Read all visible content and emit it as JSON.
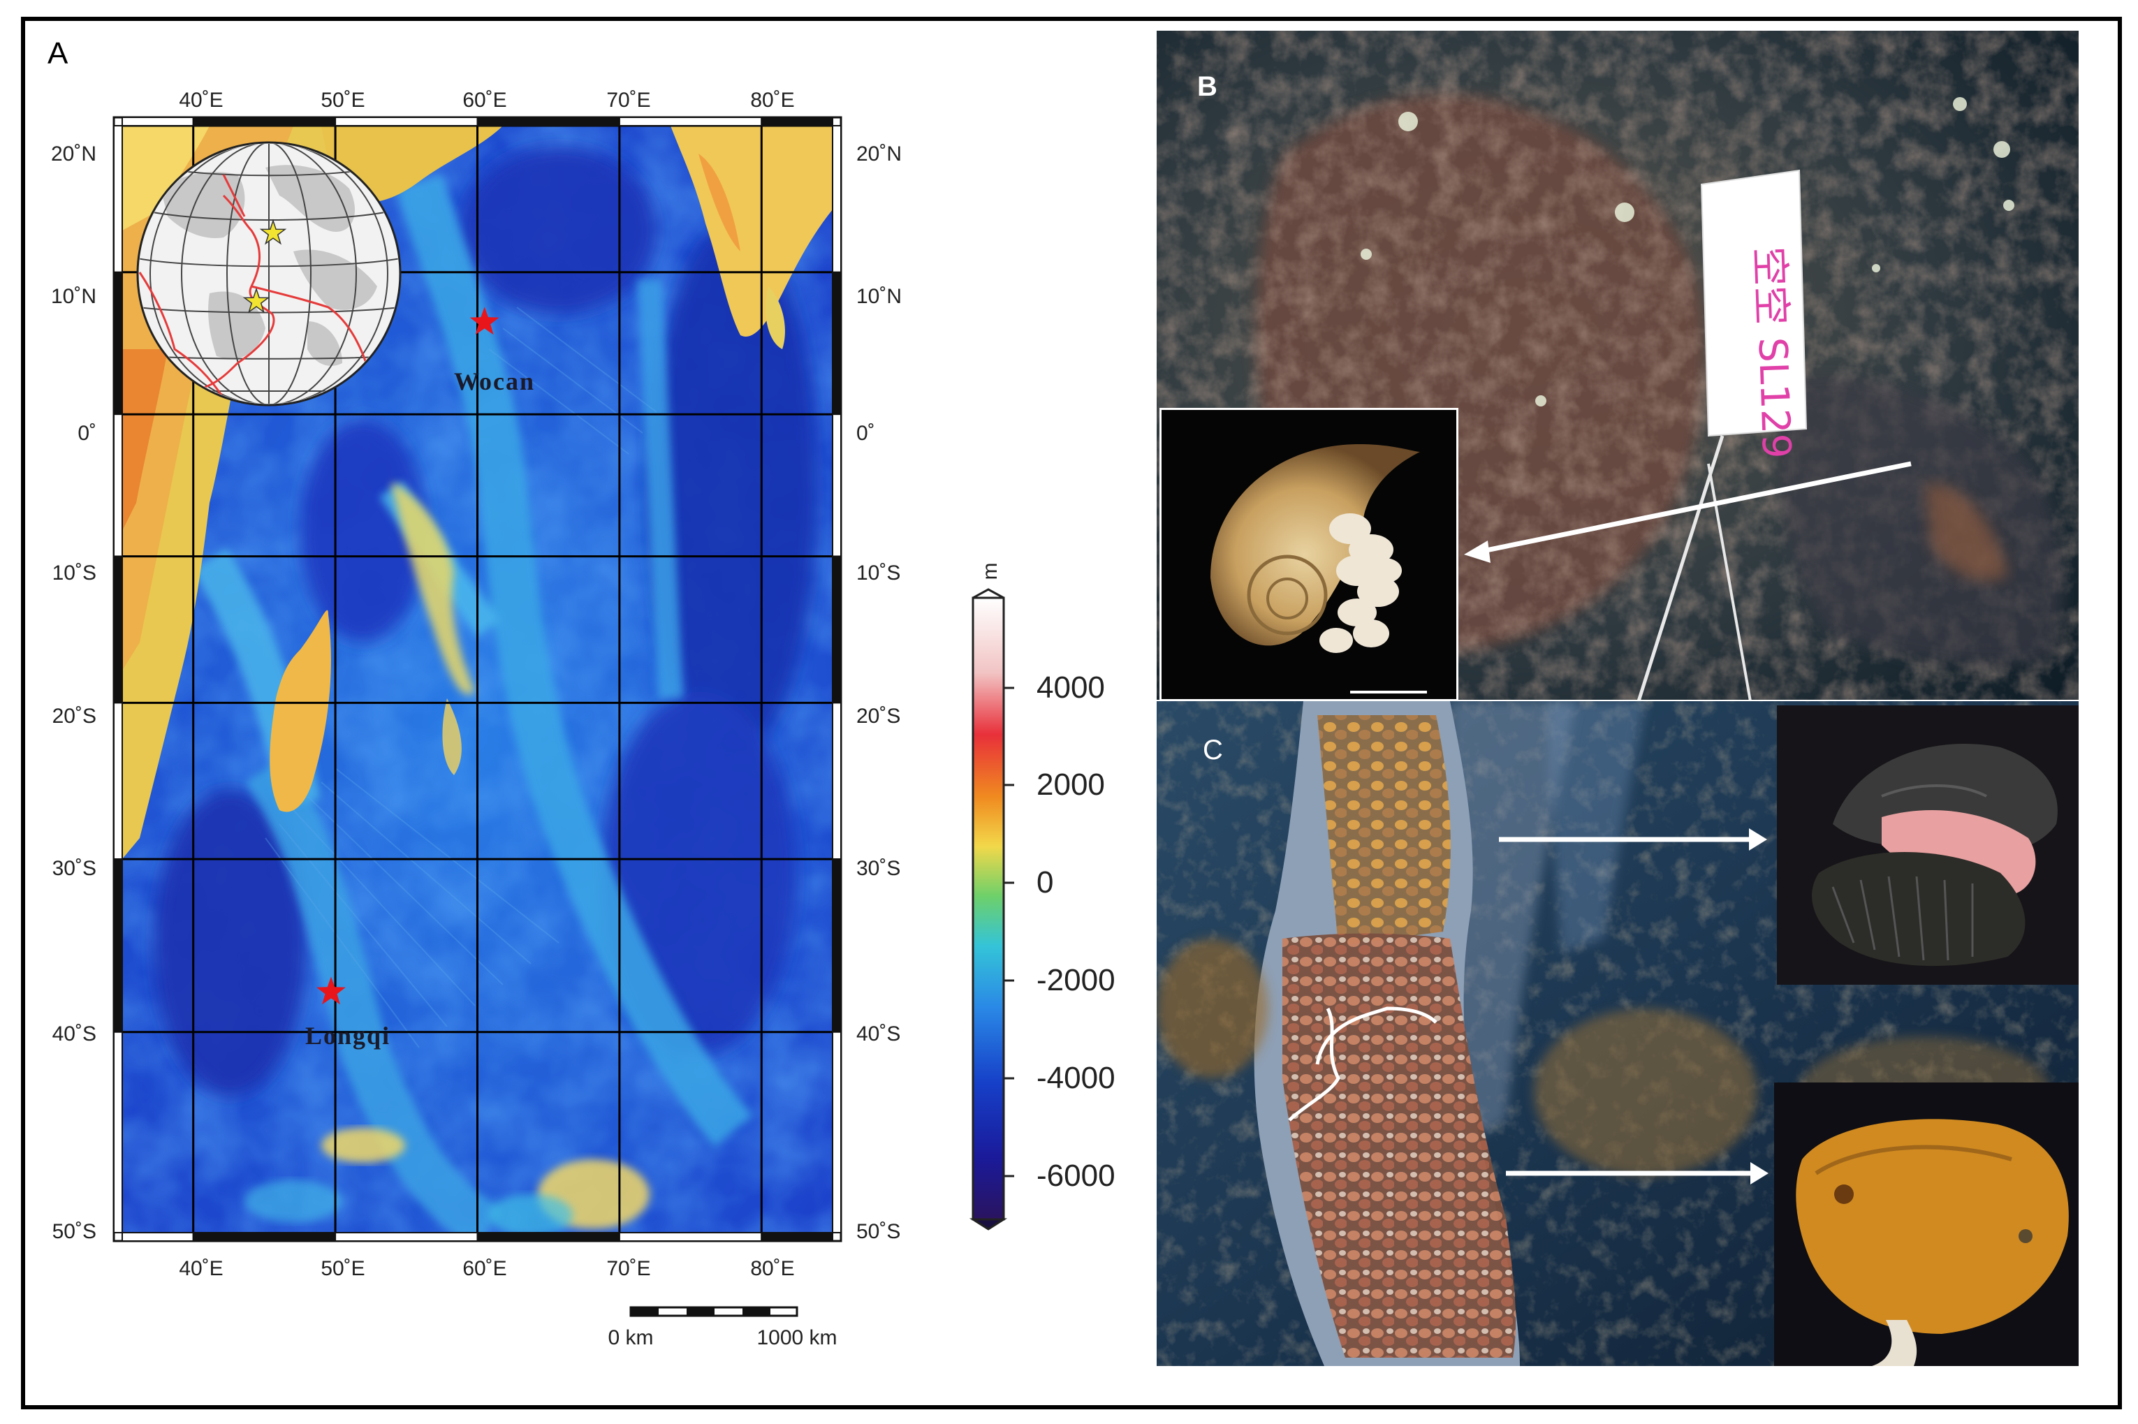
{
  "panels": {
    "a": "A",
    "b": "B",
    "c": "C"
  },
  "map": {
    "lon_labels": [
      "40˚E",
      "50˚E",
      "60˚E",
      "70˚E",
      "80˚E"
    ],
    "lat_labels_left": [
      "20˚N",
      "10˚N",
      "0˚",
      "10˚S",
      "20˚S",
      "30˚S",
      "40˚S",
      "50˚S"
    ],
    "lat_labels_right": [
      "20˚N",
      "10˚N",
      "0˚",
      "10˚S",
      "20˚S",
      "30˚S",
      "40˚S",
      "50˚S"
    ],
    "sites": [
      {
        "name": "Wocan",
        "lon": 60.5,
        "lat": 6.5,
        "color": "#e8151b"
      },
      {
        "name": "Longqi",
        "lon": 49.7,
        "lat": -37.8,
        "color": "#e8151b"
      }
    ],
    "lon_range": [
      35,
      85
    ],
    "lat_range": [
      -50,
      20
    ],
    "scale_bar": {
      "start": "0 km",
      "end": "1000 km"
    },
    "colorbar": {
      "unit": "m",
      "ticks": [
        "4000",
        "2000",
        "0",
        "-2000",
        "-4000",
        "-6000"
      ],
      "range": [
        -7000,
        5500
      ]
    }
  },
  "photo_b": {
    "marker_text": "空空 SL129",
    "arrow_count": 1
  },
  "photo_c": {
    "arrow_count": 2
  },
  "colors": {
    "deep": "#1428b0",
    "mid": "#1e6ee0",
    "shallow": "#3fb0e8",
    "land": "#f0d060",
    "star": "#e8151b"
  }
}
